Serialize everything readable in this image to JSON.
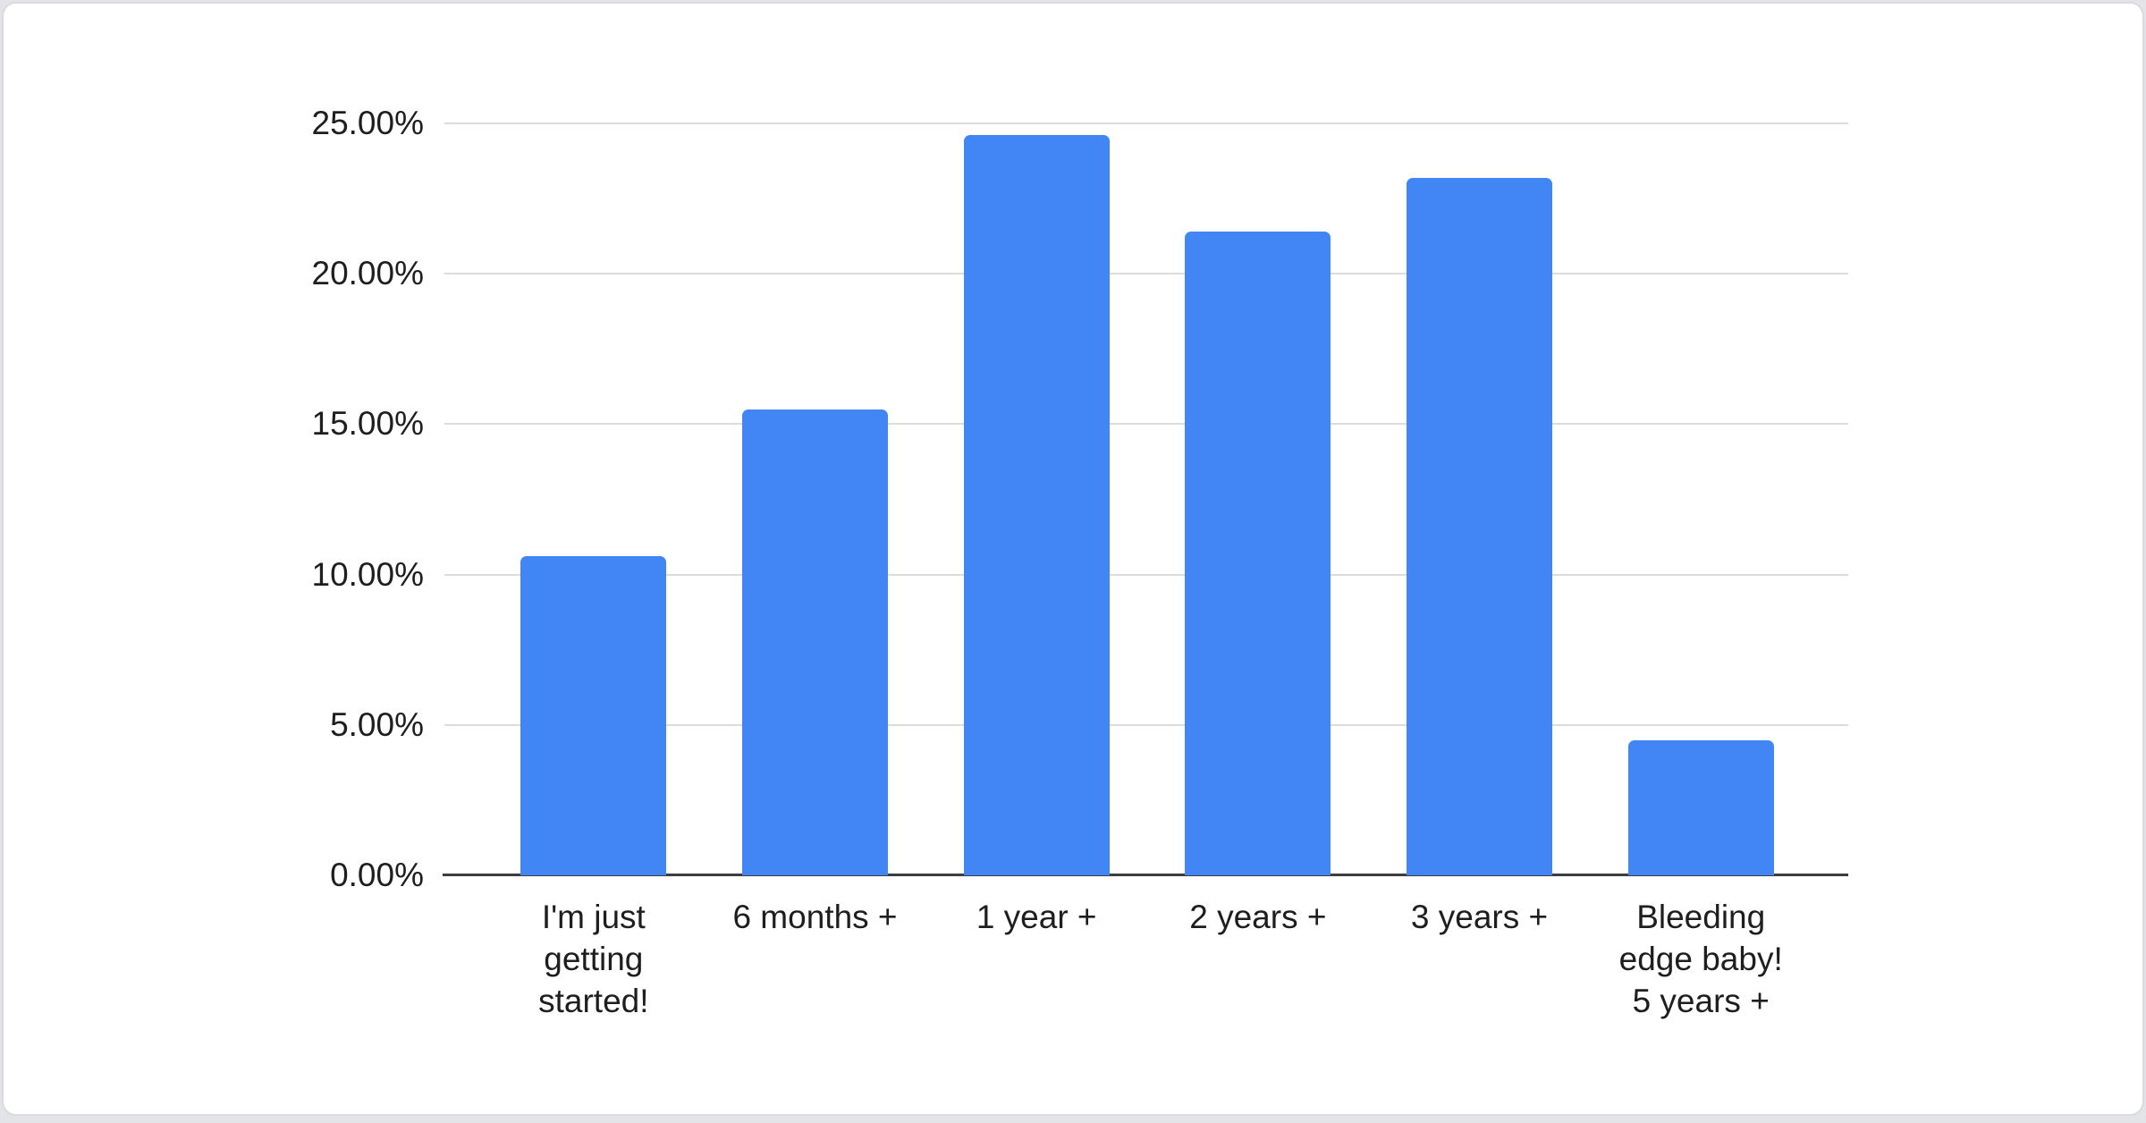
{
  "chart_data": {
    "type": "bar",
    "title": "",
    "categories": [
      "I'm just getting started!",
      "6 months +",
      "1 year +",
      "2 years +",
      "3 years +",
      "Bleeding edge baby! 5 years +"
    ],
    "category_lines": [
      [
        "I'm just",
        "getting",
        "started!"
      ],
      [
        "6 months +"
      ],
      [
        "1 year +"
      ],
      [
        "2 years +"
      ],
      [
        "3 years +"
      ],
      [
        "Bleeding",
        "edge baby!",
        "5 years +"
      ]
    ],
    "values": [
      10.6,
      15.5,
      24.6,
      21.4,
      23.2,
      4.5
    ],
    "unit": "%",
    "xlabel": "",
    "ylabel": "",
    "ylim": [
      0,
      25
    ],
    "y_tick_values": [
      0,
      5,
      10,
      15,
      20,
      25
    ],
    "y_ticks": [
      "0.00%",
      "5.00%",
      "10.00%",
      "15.00%",
      "20.00%",
      "25.00%"
    ],
    "grid": true,
    "legend_position": "none"
  },
  "colors": {
    "bar": "#4285f4",
    "grid": "#dcdcdc",
    "axis": "#3d3d3d",
    "text": "#1e1e1e",
    "page_bg": "#e2e4e7",
    "card_bg": "#ffffff",
    "card_border": "#d9dbde"
  }
}
